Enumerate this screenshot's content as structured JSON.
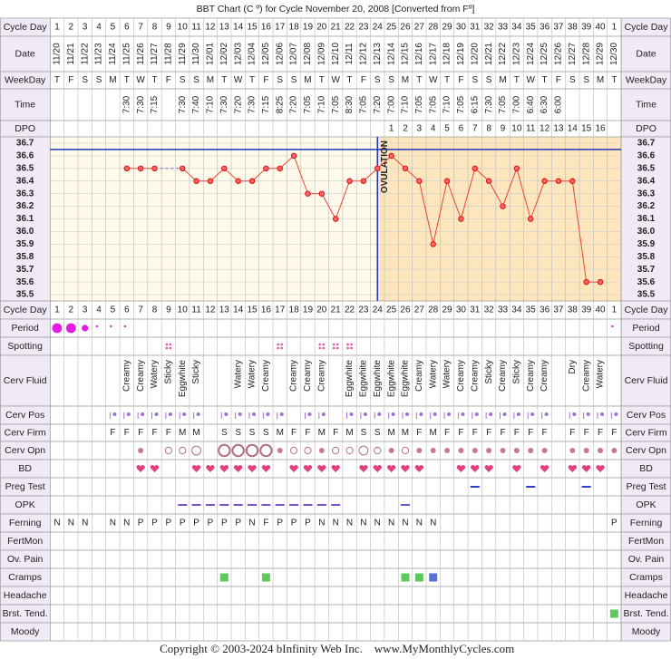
{
  "title": "BBT Chart (C º) for Cycle November 20, 2008  [Converted from Fº]",
  "copyright": "Copyright © 2003-2024 bInfinity Web Inc.",
  "website": "www.MyMonthlyCycles.com",
  "labels": {
    "cycle_day": "Cycle Day",
    "date": "Date",
    "weekday": "WeekDay",
    "time": "Time",
    "dpo": "DPO",
    "period": "Period",
    "spotting": "Spotting",
    "cerv_fluid": "Cerv Fluid",
    "cerv_pos": "Cerv Pos",
    "cerv_firm": "Cerv Firm",
    "cerv_opn": "Cerv Opn",
    "bd": "BD",
    "preg_test": "Preg Test",
    "opk": "OPK",
    "ferning": "Ferning",
    "fertmon": "FertMon",
    "ov_pain": "Ov. Pain",
    "cramps": "Cramps",
    "headache": "Headache",
    "brst_tend": "Brst. Tend.",
    "moody": "Moody"
  },
  "rows": {
    "cycle_day": [
      1,
      2,
      3,
      4,
      5,
      6,
      7,
      8,
      9,
      10,
      11,
      12,
      13,
      14,
      15,
      16,
      17,
      18,
      19,
      20,
      21,
      22,
      23,
      24,
      25,
      26,
      27,
      28,
      29,
      30,
      31,
      32,
      33,
      34,
      35,
      36,
      37,
      38,
      39,
      40,
      1
    ],
    "date": [
      "11/20",
      "11/21",
      "11/22",
      "11/23",
      "11/24",
      "11/25",
      "11/26",
      "11/27",
      "11/28",
      "11/29",
      "11/30",
      "12/01",
      "12/02",
      "12/03",
      "12/04",
      "12/05",
      "12/06",
      "12/07",
      "12/08",
      "12/09",
      "12/10",
      "12/11",
      "12/12",
      "12/13",
      "12/14",
      "12/15",
      "12/16",
      "12/17",
      "12/18",
      "12/19",
      "12/20",
      "12/21",
      "12/22",
      "12/23",
      "12/24",
      "12/25",
      "12/26",
      "12/27",
      "12/28",
      "12/29",
      "12/30"
    ],
    "weekday": [
      "T",
      "F",
      "S",
      "S",
      "M",
      "T",
      "W",
      "T",
      "F",
      "S",
      "S",
      "M",
      "T",
      "W",
      "T",
      "F",
      "S",
      "S",
      "M",
      "T",
      "W",
      "T",
      "F",
      "S",
      "S",
      "M",
      "T",
      "W",
      "T",
      "F",
      "S",
      "S",
      "M",
      "T",
      "W",
      "T",
      "F",
      "S",
      "S",
      "M",
      "T"
    ],
    "time": [
      null,
      null,
      null,
      null,
      null,
      "7:30",
      "7:30",
      "7:15",
      null,
      "7:30",
      "7:40",
      "7:10",
      "7:30",
      "7:20",
      "7:30",
      "7:15",
      "8:25",
      "7:20",
      "7:05",
      "7:10",
      "7:05",
      "8:30",
      "7:05",
      "7:20",
      "7:00",
      "7:10",
      "7:05",
      "7:05",
      "7:10",
      "7:05",
      "6:15",
      "7:30",
      "7:05",
      "7:00",
      "6:40",
      "6:30",
      "6:00",
      null,
      null,
      null,
      null
    ],
    "dpo": [
      null,
      null,
      null,
      null,
      null,
      null,
      null,
      null,
      null,
      null,
      null,
      null,
      null,
      null,
      null,
      null,
      null,
      null,
      null,
      null,
      null,
      null,
      null,
      null,
      1,
      2,
      3,
      4,
      5,
      6,
      7,
      8,
      9,
      10,
      11,
      12,
      13,
      14,
      15,
      16,
      null
    ],
    "period": [
      3,
      3,
      2,
      1,
      1,
      1,
      null,
      null,
      null,
      null,
      null,
      null,
      null,
      null,
      null,
      null,
      null,
      null,
      null,
      null,
      null,
      null,
      null,
      null,
      null,
      null,
      null,
      null,
      null,
      null,
      null,
      null,
      null,
      null,
      null,
      null,
      null,
      null,
      null,
      null,
      1
    ],
    "spotting": [
      null,
      null,
      null,
      null,
      null,
      null,
      null,
      null,
      1,
      null,
      null,
      null,
      null,
      null,
      null,
      null,
      1,
      null,
      null,
      1,
      1,
      1,
      null,
      null,
      null,
      null,
      null,
      null,
      null,
      null,
      null,
      null,
      null,
      null,
      null,
      null,
      null,
      null,
      null,
      null,
      null
    ],
    "cerv_fluid": [
      null,
      null,
      null,
      null,
      null,
      "Creamy",
      "Creamy",
      "Watery",
      "Sticky",
      "Eggwhite",
      "Sticky",
      null,
      null,
      "Watery",
      "Watery",
      "Creamy",
      null,
      "Creamy",
      "Creamy",
      "Creamy",
      null,
      "Eggwhite",
      "Eggwhite",
      "Eggwhite",
      "Eggwhite",
      "Eggwhite",
      "Creamy",
      "Watery",
      "Watery",
      "Creamy",
      "Creamy",
      "Sticky",
      "Creamy",
      "Sticky",
      "Creamy",
      "Creamy",
      null,
      "Dry",
      "Creamy",
      "Watery",
      null
    ],
    "cerv_pos": [
      null,
      null,
      null,
      null,
      1,
      1,
      1,
      1,
      1,
      1,
      1,
      null,
      1,
      1,
      1,
      1,
      1,
      null,
      1,
      1,
      null,
      1,
      1,
      1,
      1,
      1,
      1,
      1,
      1,
      1,
      1,
      1,
      1,
      1,
      1,
      1,
      null,
      1,
      1,
      1,
      1
    ],
    "cerv_firm": [
      null,
      null,
      null,
      null,
      "F",
      "F",
      "F",
      "F",
      "F",
      "M",
      "M",
      null,
      "S",
      "S",
      "S",
      "S",
      "M",
      "F",
      "F",
      "M",
      "F",
      "M",
      "S",
      "S",
      "M",
      "M",
      "F",
      "M",
      "F",
      "F",
      "F",
      "F",
      "F",
      "F",
      "F",
      "F",
      null,
      "F",
      "F",
      "F",
      "F"
    ],
    "cerv_opn": [
      null,
      null,
      null,
      null,
      null,
      null,
      1,
      null,
      2,
      2,
      3,
      null,
      4,
      4,
      4,
      4,
      1,
      2,
      2,
      1,
      2,
      2,
      3,
      2,
      1,
      2,
      1,
      1,
      1,
      1,
      1,
      1,
      1,
      1,
      1,
      1,
      null,
      1,
      1,
      1,
      1
    ],
    "bd": [
      null,
      null,
      null,
      null,
      null,
      null,
      1,
      1,
      null,
      null,
      1,
      1,
      1,
      1,
      1,
      1,
      null,
      1,
      1,
      1,
      1,
      null,
      1,
      1,
      1,
      1,
      1,
      null,
      null,
      1,
      1,
      1,
      null,
      1,
      null,
      1,
      null,
      1,
      1,
      1,
      null
    ],
    "preg_test": [
      null,
      null,
      null,
      null,
      null,
      null,
      null,
      null,
      null,
      null,
      null,
      null,
      null,
      null,
      null,
      null,
      null,
      null,
      null,
      null,
      null,
      null,
      null,
      null,
      null,
      null,
      null,
      null,
      null,
      null,
      1,
      null,
      null,
      null,
      1,
      null,
      null,
      null,
      1,
      null,
      null
    ],
    "opk": [
      null,
      null,
      null,
      null,
      null,
      null,
      null,
      null,
      null,
      1,
      1,
      1,
      1,
      1,
      1,
      1,
      1,
      1,
      1,
      1,
      1,
      null,
      null,
      null,
      null,
      1,
      null,
      null,
      null,
      null,
      null,
      null,
      null,
      null,
      null,
      null,
      null,
      null,
      null,
      null,
      null
    ],
    "ferning": [
      "N",
      "N",
      "N",
      null,
      "N",
      "N",
      "P",
      "P",
      "P",
      "P",
      "P",
      "P",
      "P",
      "P",
      "N",
      "F",
      "P",
      "P",
      "P",
      "N",
      "N",
      "N",
      "N",
      "N",
      "N",
      "N",
      "N",
      "N",
      null,
      null,
      null,
      null,
      null,
      null,
      null,
      null,
      null,
      null,
      null,
      null,
      "P"
    ],
    "cramps": [
      null,
      null,
      null,
      null,
      null,
      null,
      null,
      null,
      null,
      null,
      null,
      null,
      1,
      null,
      null,
      1,
      null,
      null,
      null,
      null,
      null,
      null,
      null,
      null,
      null,
      1,
      1,
      2,
      null,
      null,
      null,
      null,
      null,
      null,
      null,
      null,
      null,
      null,
      null,
      null,
      null
    ],
    "brst_tend": [
      null,
      null,
      null,
      null,
      null,
      null,
      null,
      null,
      null,
      null,
      null,
      null,
      null,
      null,
      null,
      null,
      null,
      null,
      null,
      null,
      null,
      null,
      null,
      null,
      null,
      null,
      null,
      null,
      null,
      null,
      null,
      null,
      null,
      null,
      null,
      null,
      null,
      null,
      null,
      null,
      1
    ]
  },
  "chart_data": {
    "type": "line",
    "values": [
      null,
      null,
      null,
      null,
      null,
      36.5,
      36.5,
      36.5,
      null,
      36.5,
      36.4,
      36.4,
      36.5,
      36.4,
      36.4,
      36.5,
      36.5,
      36.6,
      36.3,
      36.3,
      36.1,
      36.4,
      36.4,
      36.5,
      36.6,
      36.5,
      36.4,
      35.9,
      36.4,
      36.1,
      36.5,
      36.4,
      36.2,
      36.5,
      36.1,
      36.4,
      36.4,
      36.4,
      35.6,
      35.6
    ],
    "color": "#e8463c",
    "ylim": [
      35.45,
      36.75
    ],
    "yticks": [
      36.7,
      36.6,
      36.5,
      36.4,
      36.3,
      36.2,
      36.1,
      {
        "value": 36,
        "label": "36.0"
      },
      35.9,
      35.8,
      35.7,
      35.6,
      35.5
    ],
    "coverline": 36.65,
    "ovulation_day": 24,
    "annotation": "OVULATION",
    "grid": true
  }
}
